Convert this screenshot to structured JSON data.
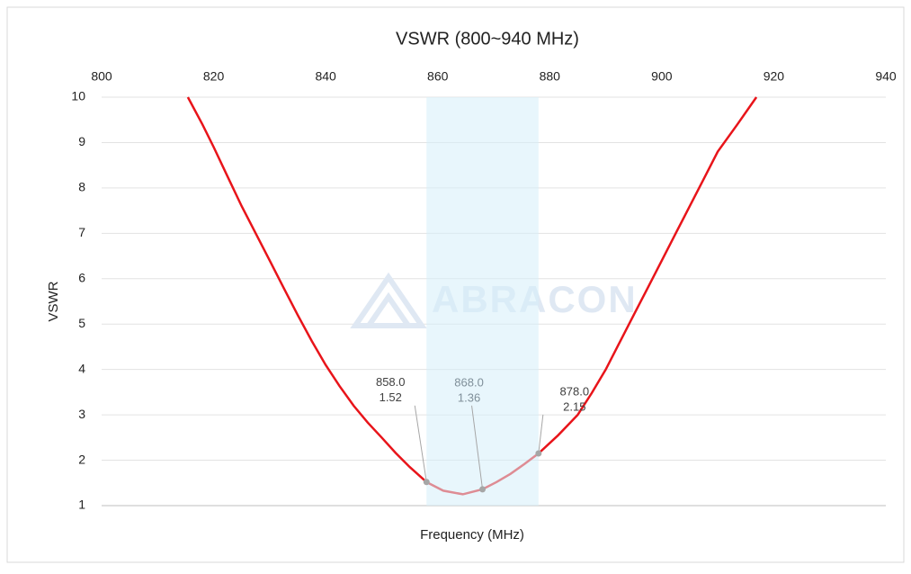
{
  "chart_data": {
    "type": "line",
    "title": "VSWR (800~940 MHz)",
    "xlabel": "Frequency (MHz)",
    "ylabel": "VSWR",
    "watermark": "ABRACON",
    "xlim": [
      800,
      940
    ],
    "xticks": [
      800,
      820,
      840,
      860,
      880,
      900,
      920,
      940
    ],
    "ylim": [
      1,
      10
    ],
    "yticks": [
      1,
      2,
      3,
      4,
      5,
      6,
      7,
      8,
      9,
      10
    ],
    "grid": true,
    "highlight": [
      858,
      878
    ],
    "highlight_color": "#d6eefa",
    "series": [
      {
        "name": "VSWR",
        "color": "#e8141a",
        "x": [
          815.4,
          818,
          820,
          822.5,
          825,
          827.5,
          830,
          832.5,
          835,
          837.5,
          840,
          842.5,
          845,
          847.5,
          850,
          852.5,
          855,
          858,
          861,
          864.5,
          868,
          870.5,
          873,
          875.5,
          878,
          881.5,
          885,
          887.5,
          890,
          892.5,
          895,
          897.5,
          900,
          902.5,
          905,
          907.5,
          910,
          913.5,
          916.9
        ],
        "values": [
          10,
          9.4,
          8.9,
          8.25,
          7.6,
          7.0,
          6.4,
          5.8,
          5.2,
          4.63,
          4.1,
          3.63,
          3.2,
          2.83,
          2.5,
          2.16,
          1.85,
          1.52,
          1.33,
          1.25,
          1.36,
          1.52,
          1.7,
          1.92,
          2.15,
          2.55,
          3.0,
          3.48,
          4.0,
          4.6,
          5.2,
          5.8,
          6.4,
          7.0,
          7.6,
          8.2,
          8.8,
          9.4,
          10
        ]
      }
    ],
    "annotations": {
      "x": [
        858,
        868,
        878
      ],
      "x_labels": [
        "858.0",
        "868.0",
        "878.0"
      ],
      "values": [
        1.52,
        1.36,
        2.15
      ],
      "value_labels": [
        "1.52",
        "1.36",
        "2.15"
      ],
      "colors": [
        "#404040",
        "#7f8f99",
        "#404040"
      ]
    }
  }
}
